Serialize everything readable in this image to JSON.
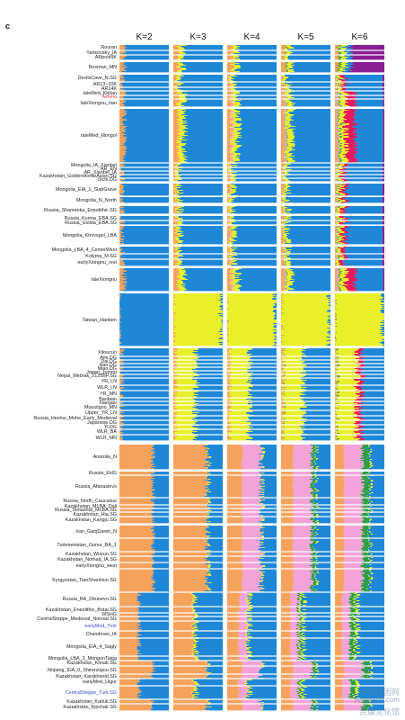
{
  "panel_letter": "c",
  "watermark": {
    "line1": "中国基因网",
    "line2": "jiyinwang.com",
    "line3": "吉康文化馆"
  },
  "colors": {
    "blue": "#1e88d8",
    "orange": "#f5a25d",
    "yellow": "#e8f02a",
    "pink": "#f4a3d8",
    "green": "#2e9e3e",
    "purple": "#8a1f93",
    "red": "#e8195a",
    "separator": "#ffffff"
  },
  "chart_data": {
    "type": "stacked-bar (admixture)",
    "panels": [
      "K=2",
      "K=3",
      "K=4",
      "K=5",
      "K=6"
    ],
    "populations": [
      {
        "label": "Rouran",
        "highlight": false
      },
      {
        "label": "Yankovsky_IA",
        "highlight": false
      },
      {
        "label": "ARpost9K",
        "highlight": false
      },
      {
        "label": "Bosman_MN",
        "highlight": false
      },
      {
        "label": "DevilsCave_N.SG",
        "highlight": false
      },
      {
        "label": "AR13~10K",
        "highlight": false
      },
      {
        "label": "AR14K",
        "highlight": false
      },
      {
        "label": "lateMed_Khitan",
        "highlight": false
      },
      {
        "label": "Ashina",
        "highlight": true,
        "highlight_color": "#e83a3a"
      },
      {
        "label": "lateXiongnu_han",
        "highlight": false
      },
      {
        "label": "lateMed_Mongol",
        "highlight": false
      },
      {
        "label": "Mongolia_IA_Xianbei",
        "highlight": false
      },
      {
        "label": "AR_EN",
        "highlight": false
      },
      {
        "label": "AR_Xianbei_IA",
        "highlight": false
      },
      {
        "label": "Kazakhstan_GoldenHordeAsian.SG",
        "highlight": false
      },
      {
        "label": "Ulchi.DG",
        "highlight": false
      },
      {
        "label": "Mongolia_EIA_1_SlabGrave",
        "highlight": false
      },
      {
        "label": "Mongolia_N_North",
        "highlight": false
      },
      {
        "label": "Russia_Shamanka_Eneolithic.SG",
        "highlight": false
      },
      {
        "label": "Russia_Kurma_EBA.SG",
        "highlight": false
      },
      {
        "label": "Russia_Ustida_EBA.SG",
        "highlight": false
      },
      {
        "label": "Mongolia_Khovsgol_LBA",
        "highlight": false
      },
      {
        "label": "Mongolia_LBA_4_CenterWest",
        "highlight": false
      },
      {
        "label": "Kolyma_M.SG",
        "highlight": false
      },
      {
        "label": "earlyXiongnu_rest",
        "highlight": false
      },
      {
        "label": "lateXiongnu",
        "highlight": false
      },
      {
        "label": "Taiwan_Hanben",
        "highlight": false
      },
      {
        "label": "Xitoucun",
        "highlight": false
      },
      {
        "label": "Ami.DG",
        "highlight": false
      },
      {
        "label": "Dai.DG",
        "highlight": false
      },
      {
        "label": "Han.DG",
        "highlight": false
      },
      {
        "label": "Miao.DG",
        "highlight": false
      },
      {
        "label": "Japan_Jomon",
        "highlight": false
      },
      {
        "label": "Nepal_Mebrak_2125BP.SG",
        "highlight": false
      },
      {
        "label": "YR_LN",
        "highlight": false
      },
      {
        "label": "WLR_LN",
        "highlight": false
      },
      {
        "label": "YR_MN",
        "highlight": false
      },
      {
        "label": "Banbian",
        "highlight": false
      },
      {
        "label": "Xiaogao",
        "highlight": false
      },
      {
        "label": "Miaozigou_MN",
        "highlight": false
      },
      {
        "label": "Upper_YR_LN",
        "highlight": false
      },
      {
        "label": "Russia_Heshui_Mohe_Early_Medieval",
        "highlight": false
      },
      {
        "label": "Japanese.DG",
        "highlight": false
      },
      {
        "label": "Yi.DG",
        "highlight": false
      },
      {
        "label": "WLR_BA",
        "highlight": false
      },
      {
        "label": "WLR_MN",
        "highlight": false
      },
      {
        "label": "Anatolia_N",
        "highlight": false
      },
      {
        "label": "Russia_EHG",
        "highlight": false
      },
      {
        "label": "Russia_Afanasievo",
        "highlight": false
      },
      {
        "label": "Russia_North_Caucasus",
        "highlight": false
      },
      {
        "label": "Kazakhstan_MLBA_Dali",
        "highlight": false
      },
      {
        "label": "Russia_Sintashta_MLBA.SG",
        "highlight": false
      },
      {
        "label": "Kazakhstan_Hia.SG",
        "highlight": false
      },
      {
        "label": "Kazakhstan_Kangju.SG",
        "highlight": false
      },
      {
        "label": "Iran_GanjDareh_N",
        "highlight": false
      },
      {
        "label": "Turkmenistan_Gonur_BA_1",
        "highlight": false
      },
      {
        "label": "Kazakhstan_Wusun.SG",
        "highlight": false
      },
      {
        "label": "Kazakhstan_Nomad_IA.SG",
        "highlight": false
      },
      {
        "label": "earlyXiongnu_west",
        "highlight": false
      },
      {
        "label": "Kyrgyzstan_TianShanHun.SG",
        "highlight": false
      },
      {
        "label": "Russia_BA_Okunevo.SG",
        "highlight": false
      },
      {
        "label": "Kazakhstan_Eneolithic_Botai.SG",
        "highlight": false
      },
      {
        "label": "WSHG",
        "highlight": false
      },
      {
        "label": "CentralSteppe_Medieval_Nomad.SG",
        "highlight": false
      },
      {
        "label": "earlyMed_Turk",
        "highlight": true,
        "highlight_color": "#3a4fd0"
      },
      {
        "label": "Chandman_IA",
        "highlight": false
      },
      {
        "label": "Mongolia_EIA_4_Sagly",
        "highlight": false
      },
      {
        "label": "Mongolia_LBA_3_MongunTaiga",
        "highlight": false
      },
      {
        "label": "Kazakhstan_Kimak.SG",
        "highlight": false
      },
      {
        "label": "Xinjiang_EIA_0_Shirenzigou.SG",
        "highlight": false
      },
      {
        "label": "Kazakhstan_Karakhanid.SG",
        "highlight": false
      },
      {
        "label": "earlyMed_Uigur",
        "highlight": false
      },
      {
        "label": "CentralSteppe_Turk.SG",
        "highlight": true,
        "highlight_color": "#3a4fd0"
      },
      {
        "label": "Kazakhstan_Karluk.SG",
        "highlight": false
      },
      {
        "label": "Kazakhstan_Kipchak.SG",
        "highlight": false
      }
    ]
  }
}
